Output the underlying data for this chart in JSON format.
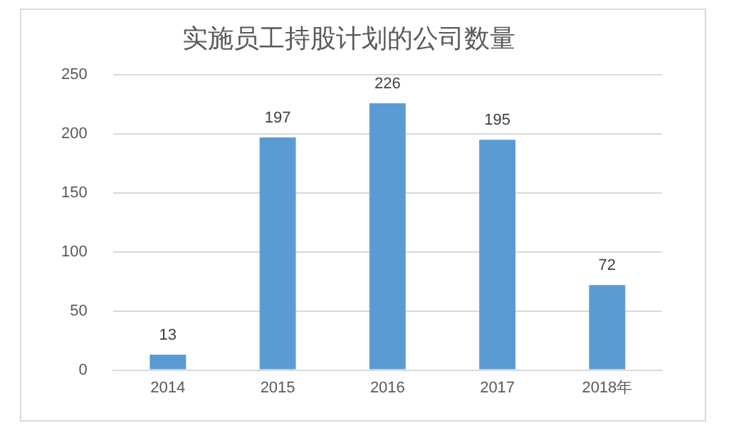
{
  "chart_data": {
    "type": "bar",
    "title": "实施员工持股计划的公司数量",
    "categories": [
      "2014",
      "2015",
      "2016",
      "2017",
      "2018年"
    ],
    "values": [
      13,
      197,
      226,
      195,
      72
    ],
    "color": "#5b9bd5",
    "ylim": [
      0,
      250
    ],
    "yticks": [
      0,
      50,
      100,
      150,
      200,
      250
    ],
    "grid": "y",
    "data_labels": true,
    "legend": false
  }
}
